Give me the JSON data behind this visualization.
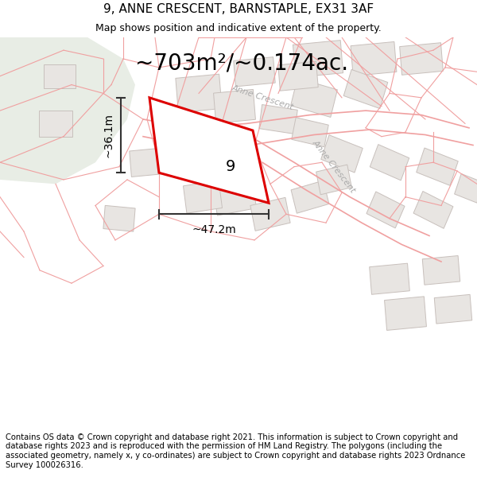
{
  "title": "9, ANNE CRESCENT, BARNSTAPLE, EX31 3AF",
  "subtitle": "Map shows position and indicative extent of the property.",
  "area_text": "~703m²/~0.174ac.",
  "dim_width": "~47.2m",
  "dim_height": "~36.1m",
  "property_number": "9",
  "footer": "Contains OS data © Crown copyright and database right 2021. This information is subject to Crown copyright and database rights 2023 and is reproduced with the permission of HM Land Registry. The polygons (including the associated geometry, namely x, y co-ordinates) are subject to Crown copyright and database rights 2023 Ordnance Survey 100026316.",
  "bg_color": "#ffffff",
  "bg_green": "#e8ede5",
  "map_bg": "#f8f6f4",
  "property_fill": "#ffffff",
  "property_edge": "#dd0000",
  "line_color": "#f0a0a0",
  "building_fill": "#e8e5e2",
  "building_edge": "#c8c0bc",
  "street_label_color": "#aaaaaa",
  "dim_line_color": "#333333",
  "title_fontsize": 11,
  "subtitle_fontsize": 9,
  "area_fontsize": 20,
  "dim_fontsize": 10,
  "footer_fontsize": 7.2,
  "property_label_fontsize": 14
}
